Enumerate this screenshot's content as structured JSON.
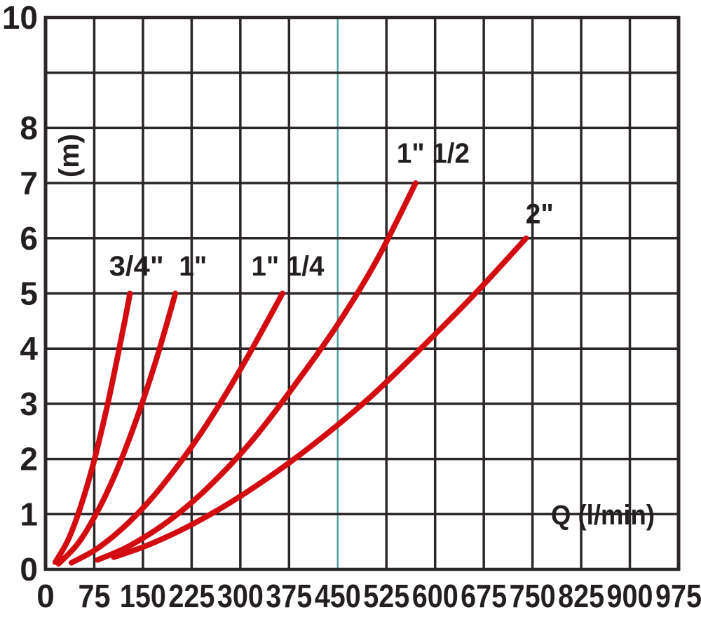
{
  "chart_data": {
    "type": "line",
    "title": "",
    "xlabel": "Q (l/min)",
    "ylabel": "(m)",
    "xlim": [
      0,
      975
    ],
    "ylim": [
      0,
      10
    ],
    "x_ticks": [
      0,
      75,
      150,
      225,
      300,
      375,
      450,
      525,
      600,
      675,
      750,
      825,
      900,
      975
    ],
    "y_ticks_shown": [
      "10",
      "8",
      "7",
      "6",
      "5",
      "4",
      "3",
      "2",
      "1",
      "0"
    ],
    "y_gridlines": [
      0,
      1,
      2,
      3,
      4,
      5,
      6,
      7,
      8,
      9,
      10
    ],
    "grid": true,
    "legend_position": "labels-at-curve-tops",
    "highlighted_x_gridline": {
      "x": 450,
      "color": "#55a0a0"
    },
    "series": [
      {
        "name": "3/4\"",
        "label_at": [
          140,
          5.5
        ],
        "points": [
          [
            15,
            0.13
          ],
          [
            35,
            0.54
          ],
          [
            55,
            1.17
          ],
          [
            75,
            1.98
          ],
          [
            95,
            2.96
          ],
          [
            110,
            3.8
          ],
          [
            122,
            4.5
          ],
          [
            130,
            5.0
          ]
        ]
      },
      {
        "name": "1\"",
        "label_at": [
          227,
          5.5
        ],
        "points": [
          [
            20,
            0.1
          ],
          [
            50,
            0.47
          ],
          [
            80,
            1.05
          ],
          [
            110,
            1.8
          ],
          [
            140,
            2.72
          ],
          [
            170,
            3.78
          ],
          [
            200,
            5.0
          ]
        ]
      },
      {
        "name": "1\" 1/4",
        "label_at": [
          373,
          5.5
        ],
        "points": [
          [
            40,
            0.12
          ],
          [
            80,
            0.38
          ],
          [
            130,
            0.87
          ],
          [
            180,
            1.52
          ],
          [
            240,
            2.48
          ],
          [
            300,
            3.62
          ],
          [
            365,
            5.0
          ]
        ]
      },
      {
        "name": "1\" 1/2",
        "label_at": [
          597,
          7.55
        ],
        "points": [
          [
            80,
            0.17
          ],
          [
            130,
            0.43
          ],
          [
            190,
            0.88
          ],
          [
            250,
            1.48
          ],
          [
            320,
            2.36
          ],
          [
            390,
            3.44
          ],
          [
            450,
            4.44
          ],
          [
            510,
            5.6
          ],
          [
            570,
            7.0
          ]
        ]
      },
      {
        "name": "2\"",
        "label_at": [
          761,
          6.45
        ],
        "points": [
          [
            105,
            0.22
          ],
          [
            160,
            0.45
          ],
          [
            230,
            0.84
          ],
          [
            310,
            1.4
          ],
          [
            400,
            2.15
          ],
          [
            500,
            3.12
          ],
          [
            600,
            4.26
          ],
          [
            670,
            5.1
          ],
          [
            740,
            6.0
          ]
        ]
      }
    ],
    "colors": {
      "curves": "#d20c11",
      "grid": "#2b2627",
      "text": "#231f20",
      "highlight": "#55a0a0",
      "background": "#ffffff"
    }
  }
}
